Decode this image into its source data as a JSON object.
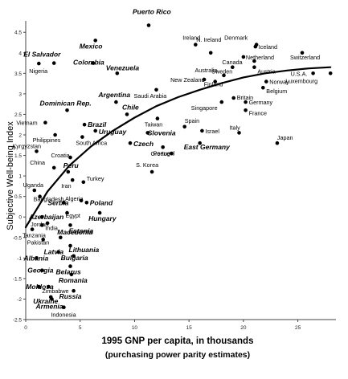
{
  "chart_data": {
    "type": "scatter",
    "xlabel": "1995 GNP per capita, in thousands",
    "xlabel_sub": "(purchasing power parity estimates)",
    "ylabel": "Subjective Well-being Index",
    "xlim": [
      0,
      28.5
    ],
    "ylim": [
      -2.5,
      4.7
    ],
    "xticks": [
      0,
      5,
      10,
      15,
      20,
      25
    ],
    "yticks": [
      4.5,
      4,
      3.5,
      3,
      2.5,
      2,
      1.5,
      1,
      0.5,
      0,
      -0.5,
      -1,
      -1.5,
      -2,
      -2.5
    ],
    "grid": false,
    "trend": {
      "type": "curve",
      "x": [
        0,
        2,
        4,
        6,
        8,
        10,
        12,
        14,
        16,
        18,
        20,
        22,
        24,
        26,
        28
      ],
      "y": [
        -0.25,
        0.62,
        1.25,
        1.72,
        2.1,
        2.42,
        2.7,
        2.92,
        3.1,
        3.26,
        3.4,
        3.5,
        3.57,
        3.62,
        3.65
      ]
    },
    "points": [
      {
        "label": "Puerto Rico",
        "x": 11.3,
        "y": 4.67,
        "emph": true
      },
      {
        "label": "El Salvador",
        "x": 2.6,
        "y": 3.75,
        "emph": true
      },
      {
        "label": "Nigeria",
        "x": 1.2,
        "y": 3.74,
        "emph": false
      },
      {
        "label": "Mexico",
        "x": 6.4,
        "y": 4.3,
        "emph": true
      },
      {
        "label": "Colombia",
        "x": 6.2,
        "y": 3.75,
        "emph": true
      },
      {
        "label": "Venezuela",
        "x": 8.4,
        "y": 3.5,
        "emph": true
      },
      {
        "label": "Ireland",
        "x": 15.6,
        "y": 4.2,
        "emph": false
      },
      {
        "label": "N. Ireland",
        "x": 17.0,
        "y": 4.0,
        "emph": false
      },
      {
        "label": "Denmark",
        "x": 21.2,
        "y": 4.2,
        "emph": false
      },
      {
        "label": "Iceland",
        "x": 21.1,
        "y": 4.15,
        "emph": false
      },
      {
        "label": "Canada",
        "x": 21.0,
        "y": 3.8,
        "emph": false
      },
      {
        "label": "Netherland",
        "x": 20.0,
        "y": 3.9,
        "emph": false
      },
      {
        "label": "Switzerland",
        "x": 25.4,
        "y": 4.0,
        "emph": false
      },
      {
        "label": "Sweden",
        "x": 19.0,
        "y": 3.65,
        "emph": false
      },
      {
        "label": "Austria",
        "x": 21.0,
        "y": 3.65,
        "emph": false
      },
      {
        "label": "Australia",
        "x": 18.2,
        "y": 3.45,
        "emph": false
      },
      {
        "label": "New Zealand",
        "x": 16.4,
        "y": 3.35,
        "emph": false
      },
      {
        "label": "Finland",
        "x": 17.4,
        "y": 3.3,
        "emph": false
      },
      {
        "label": "U.S.A.",
        "x": 26.4,
        "y": 3.5,
        "emph": false
      },
      {
        "label": "Luxembourg",
        "x": 28.0,
        "y": 3.5,
        "emph": false
      },
      {
        "label": "Norway",
        "x": 22.1,
        "y": 3.3,
        "emph": false
      },
      {
        "label": "Belgium",
        "x": 21.8,
        "y": 3.15,
        "emph": false
      },
      {
        "label": "Britain",
        "x": 19.1,
        "y": 2.9,
        "emph": false
      },
      {
        "label": "Singapore",
        "x": 18.0,
        "y": 2.8,
        "emph": false
      },
      {
        "label": "Germany",
        "x": 20.2,
        "y": 2.8,
        "emph": false
      },
      {
        "label": "France",
        "x": 20.2,
        "y": 2.6,
        "emph": false
      },
      {
        "label": "Saudi Arabia",
        "x": 12.0,
        "y": 3.1,
        "emph": false
      },
      {
        "label": "Dominican Rep.",
        "x": 3.8,
        "y": 2.6,
        "emph": true
      },
      {
        "label": "Argentina",
        "x": 8.3,
        "y": 2.8,
        "emph": true
      },
      {
        "label": "Chile",
        "x": 9.3,
        "y": 2.5,
        "emph": true
      },
      {
        "label": "Brazil",
        "x": 5.4,
        "y": 2.25,
        "emph": true
      },
      {
        "label": "Vietnam",
        "x": 1.8,
        "y": 2.3,
        "emph": false
      },
      {
        "label": "Taiwan",
        "x": 12.1,
        "y": 2.4,
        "emph": false
      },
      {
        "label": "Uruguay",
        "x": 6.4,
        "y": 2.1,
        "emph": true
      },
      {
        "label": "Philippines",
        "x": 2.7,
        "y": 2.0,
        "emph": false
      },
      {
        "label": "South Africa",
        "x": 5.2,
        "y": 1.95,
        "emph": false
      },
      {
        "label": "Slovenia",
        "x": 11.2,
        "y": 2.05,
        "emph": true
      },
      {
        "label": "Czech",
        "x": 9.6,
        "y": 1.8,
        "emph": true
      },
      {
        "label": "Spain",
        "x": 14.6,
        "y": 2.2,
        "emph": false
      },
      {
        "label": "Israel",
        "x": 16.2,
        "y": 2.1,
        "emph": false
      },
      {
        "label": "East Germany",
        "x": 16.0,
        "y": 1.8,
        "emph": true
      },
      {
        "label": "Portugal",
        "x": 12.6,
        "y": 1.7,
        "emph": false
      },
      {
        "label": "Greece",
        "x": 13.4,
        "y": 1.55,
        "emph": false
      },
      {
        "label": "Italy",
        "x": 19.6,
        "y": 2.05,
        "emph": false
      },
      {
        "label": "Japan",
        "x": 23.1,
        "y": 1.8,
        "emph": false
      },
      {
        "label": "Kyrgyzstan",
        "x": 1.0,
        "y": 1.6,
        "emph": false
      },
      {
        "label": "Croatia",
        "x": 4.1,
        "y": 1.45,
        "emph": false
      },
      {
        "label": "China",
        "x": 2.6,
        "y": 1.2,
        "emph": false
      },
      {
        "label": "Peru",
        "x": 3.9,
        "y": 1.1,
        "emph": true
      },
      {
        "label": "S. Korea",
        "x": 11.6,
        "y": 1.1,
        "emph": false
      },
      {
        "label": "Iran",
        "x": 4.3,
        "y": 0.9,
        "emph": false
      },
      {
        "label": "Turkey",
        "x": 5.3,
        "y": 0.85,
        "emph": false
      },
      {
        "label": "Uganda",
        "x": 0.8,
        "y": 0.65,
        "emph": false
      },
      {
        "label": "Bangladesh",
        "x": 1.3,
        "y": 0.5,
        "emph": false
      },
      {
        "label": "Algeria",
        "x": 5.1,
        "y": 0.4,
        "emph": false
      },
      {
        "label": "Serbia",
        "x": 3.5,
        "y": 0.35,
        "emph": true
      },
      {
        "label": "Poland",
        "x": 5.6,
        "y": 0.35,
        "emph": true
      },
      {
        "label": "Egypt",
        "x": 3.8,
        "y": 0.1,
        "emph": false
      },
      {
        "label": "Hungary",
        "x": 6.8,
        "y": 0.1,
        "emph": true
      },
      {
        "label": "Azerbaijan",
        "x": 1.5,
        "y": 0.0,
        "emph": true
      },
      {
        "label": "Jordan",
        "x": 2.0,
        "y": -0.15,
        "emph": false
      },
      {
        "label": "India",
        "x": 1.5,
        "y": -0.2,
        "emph": false
      },
      {
        "label": "Estonia",
        "x": 4.1,
        "y": -0.2,
        "emph": true
      },
      {
        "label": "Tanzania",
        "x": 0.6,
        "y": -0.3,
        "emph": false
      },
      {
        "label": "Macedonia",
        "x": 3.2,
        "y": -0.5,
        "emph": true
      },
      {
        "label": "Lithuania",
        "x": 4.1,
        "y": -0.7,
        "emph": true
      },
      {
        "label": "Pakistan",
        "x": 1.6,
        "y": -0.55,
        "emph": false
      },
      {
        "label": "Latvia",
        "x": 3.0,
        "y": -0.85,
        "emph": true
      },
      {
        "label": "Bulgaria",
        "x": 4.4,
        "y": -0.95,
        "emph": true
      },
      {
        "label": "Albania",
        "x": 1.0,
        "y": -1.0,
        "emph": true
      },
      {
        "label": "Belarus",
        "x": 4.1,
        "y": -1.2,
        "emph": true
      },
      {
        "label": "Georgia",
        "x": 1.5,
        "y": -1.3,
        "emph": true
      },
      {
        "label": "Romania",
        "x": 4.2,
        "y": -1.4,
        "emph": true
      },
      {
        "label": "Moldova",
        "x": 1.2,
        "y": -1.7,
        "emph": true
      },
      {
        "label": "Zimbabwe",
        "x": 2.1,
        "y": -1.7,
        "emph": false
      },
      {
        "label": "Russia",
        "x": 4.4,
        "y": -1.8,
        "emph": true
      },
      {
        "label": "Ukraine",
        "x": 2.3,
        "y": -1.95,
        "emph": true
      },
      {
        "label": "Armenia",
        "x": 2.4,
        "y": -2.0,
        "emph": true
      },
      {
        "label": "Indonesia",
        "x": 3.5,
        "y": -2.2,
        "emph": false
      }
    ]
  }
}
